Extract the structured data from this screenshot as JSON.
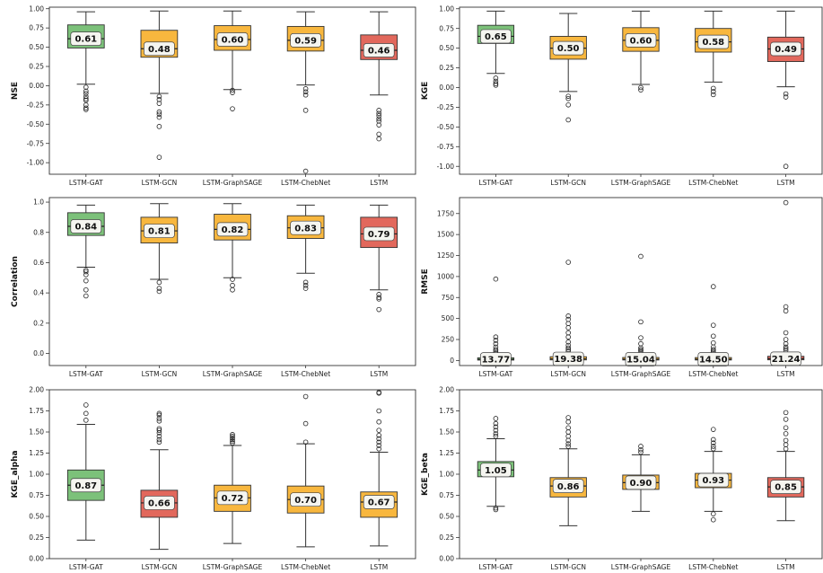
{
  "figure": {
    "colors": {
      "best": "#7cc17a",
      "mid": "#f8b73e",
      "worst": "#e2685c",
      "label_bg": "#f5f5f0",
      "frame": "#333333"
    }
  },
  "chart_data": [
    {
      "type": "box",
      "ylabel": "NSE",
      "categories": [
        "LSTM-GAT",
        "LSTM-GCN",
        "LSTM-GraphSAGE",
        "LSTM-ChebNet",
        "LSTM"
      ],
      "ylim": [
        -1.15,
        1.02
      ],
      "yticks": [
        -1.0,
        -0.75,
        -0.5,
        -0.25,
        0.0,
        0.25,
        0.5,
        0.75,
        1.0
      ],
      "ytick_labels": [
        "-1.00",
        "-0.75",
        "-0.50",
        "-0.25",
        "0.00",
        "0.25",
        "0.50",
        "0.75",
        "1.00"
      ],
      "boxes": [
        {
          "q1": 0.49,
          "median": 0.61,
          "q3": 0.79,
          "wlo": 0.02,
          "whi": 0.96,
          "label": "0.61",
          "color": "best",
          "outliers": [
            -0.02,
            -0.07,
            -0.1,
            -0.14,
            -0.17,
            -0.19,
            -0.25,
            -0.29,
            -0.31
          ]
        },
        {
          "q1": 0.37,
          "median": 0.48,
          "q3": 0.72,
          "wlo": -0.1,
          "whi": 0.97,
          "label": "0.48",
          "color": "mid",
          "outliers": [
            -0.14,
            -0.18,
            -0.23,
            -0.34,
            -0.37,
            -0.41,
            -0.53,
            -0.93
          ]
        },
        {
          "q1": 0.46,
          "median": 0.6,
          "q3": 0.78,
          "wlo": -0.05,
          "whi": 0.97,
          "label": "0.60",
          "color": "mid",
          "outliers": [
            -0.06,
            -0.09,
            -0.3
          ]
        },
        {
          "q1": 0.45,
          "median": 0.59,
          "q3": 0.77,
          "wlo": 0.01,
          "whi": 0.96,
          "label": "0.59",
          "color": "mid",
          "outliers": [
            -0.04,
            -0.08,
            -0.12,
            -0.32,
            -1.11
          ]
        },
        {
          "q1": 0.34,
          "median": 0.46,
          "q3": 0.66,
          "wlo": -0.12,
          "whi": 0.96,
          "label": "0.46",
          "color": "worst",
          "outliers": [
            -0.32,
            -0.36,
            -0.39,
            -0.43,
            -0.46,
            -0.51,
            -0.63,
            -0.69
          ]
        }
      ]
    },
    {
      "type": "box",
      "ylabel": "KGE",
      "categories": [
        "LSTM-GAT",
        "LSTM-GCN",
        "LSTM-GraphSAGE",
        "LSTM-ChebNet",
        "LSTM"
      ],
      "ylim": [
        -1.1,
        1.02
      ],
      "yticks": [
        -1.0,
        -0.75,
        -0.5,
        -0.25,
        0.0,
        0.25,
        0.5,
        0.75,
        1.0
      ],
      "ytick_labels": [
        "-1.00",
        "-0.75",
        "-0.50",
        "-0.25",
        "0.00",
        "0.25",
        "0.50",
        "0.75",
        "1.00"
      ],
      "boxes": [
        {
          "q1": 0.56,
          "median": 0.65,
          "q3": 0.79,
          "wlo": 0.18,
          "whi": 0.97,
          "label": "0.65",
          "color": "best",
          "outliers": [
            0.12,
            0.08,
            0.05,
            0.03
          ]
        },
        {
          "q1": 0.36,
          "median": 0.5,
          "q3": 0.65,
          "wlo": -0.05,
          "whi": 0.94,
          "label": "0.50",
          "color": "mid",
          "outliers": [
            -0.11,
            -0.14,
            -0.22,
            -0.41
          ]
        },
        {
          "q1": 0.46,
          "median": 0.6,
          "q3": 0.76,
          "wlo": 0.04,
          "whi": 0.97,
          "label": "0.60",
          "color": "mid",
          "outliers": [
            0.0,
            -0.03
          ]
        },
        {
          "q1": 0.45,
          "median": 0.58,
          "q3": 0.75,
          "wlo": 0.07,
          "whi": 0.97,
          "label": "0.58",
          "color": "mid",
          "outliers": [
            -0.01,
            -0.05,
            -0.09
          ]
        },
        {
          "q1": 0.33,
          "median": 0.49,
          "q3": 0.64,
          "wlo": 0.01,
          "whi": 0.97,
          "label": "0.49",
          "color": "worst",
          "outliers": [
            -0.08,
            -0.12,
            -1.0
          ]
        }
      ]
    },
    {
      "type": "box",
      "ylabel": "Correlation",
      "categories": [
        "LSTM-GAT",
        "LSTM-GCN",
        "LSTM-GraphSAGE",
        "LSTM-ChebNet",
        "LSTM"
      ],
      "ylim": [
        -0.08,
        1.03
      ],
      "yticks": [
        0.0,
        0.2,
        0.4,
        0.6,
        0.8,
        1.0
      ],
      "ytick_labels": [
        "0.0",
        "0.2",
        "0.4",
        "0.6",
        "0.8",
        "1.0"
      ],
      "boxes": [
        {
          "q1": 0.78,
          "median": 0.84,
          "q3": 0.93,
          "wlo": 0.57,
          "whi": 0.98,
          "label": "0.84",
          "color": "best",
          "outliers": [
            0.55,
            0.54,
            0.52,
            0.48,
            0.42,
            0.38
          ]
        },
        {
          "q1": 0.73,
          "median": 0.81,
          "q3": 0.9,
          "wlo": 0.49,
          "whi": 0.99,
          "label": "0.81",
          "color": "mid",
          "outliers": [
            0.47,
            0.43,
            0.41
          ]
        },
        {
          "q1": 0.75,
          "median": 0.82,
          "q3": 0.92,
          "wlo": 0.5,
          "whi": 0.99,
          "label": "0.82",
          "color": "mid",
          "outliers": [
            0.49,
            0.45,
            0.42
          ]
        },
        {
          "q1": 0.76,
          "median": 0.83,
          "q3": 0.91,
          "wlo": 0.53,
          "whi": 0.98,
          "label": "0.83",
          "color": "mid",
          "outliers": [
            0.47,
            0.45,
            0.43
          ]
        },
        {
          "q1": 0.7,
          "median": 0.79,
          "q3": 0.9,
          "wlo": 0.42,
          "whi": 0.98,
          "label": "0.79",
          "color": "worst",
          "outliers": [
            0.39,
            0.37,
            0.36,
            0.29
          ]
        }
      ]
    },
    {
      "type": "box",
      "ylabel": "RMSE",
      "categories": [
        "LSTM-GAT",
        "LSTM-GCN",
        "LSTM-GraphSAGE",
        "LSTM-ChebNet",
        "LSTM"
      ],
      "ylim": [
        -60,
        1940
      ],
      "yticks": [
        0,
        250,
        500,
        750,
        1000,
        1250,
        1500,
        1750
      ],
      "ytick_labels": [
        "0",
        "250",
        "500",
        "750",
        "1000",
        "1250",
        "1500",
        "1750"
      ],
      "boxes": [
        {
          "q1": 5,
          "median": 13.77,
          "q3": 32,
          "wlo": 0,
          "whi": 70,
          "label": "13.77",
          "color": "best",
          "outliers": [
            90,
            110,
            130,
            160,
            200,
            240,
            280,
            970
          ]
        },
        {
          "q1": 7,
          "median": 19.38,
          "q3": 45,
          "wlo": 0,
          "whi": 90,
          "label": "19.38",
          "color": "mid",
          "outliers": [
            110,
            130,
            150,
            180,
            220,
            280,
            330,
            390,
            440,
            490,
            530,
            1170
          ]
        },
        {
          "q1": 6,
          "median": 15.04,
          "q3": 36,
          "wlo": 0,
          "whi": 78,
          "label": "15.04",
          "color": "mid",
          "outliers": [
            95,
            115,
            130,
            150,
            200,
            270,
            460,
            1240
          ]
        },
        {
          "q1": 6,
          "median": 14.5,
          "q3": 35,
          "wlo": 0,
          "whi": 75,
          "label": "14.50",
          "color": "mid",
          "outliers": [
            95,
            110,
            130,
            160,
            210,
            290,
            420,
            880
          ]
        },
        {
          "q1": 8,
          "median": 21.24,
          "q3": 50,
          "wlo": 0,
          "whi": 100,
          "label": "21.24",
          "color": "worst",
          "outliers": [
            120,
            140,
            160,
            200,
            250,
            330,
            590,
            640,
            1880
          ]
        }
      ]
    },
    {
      "type": "box",
      "ylabel": "KGE_alpha",
      "categories": [
        "LSTM-GAT",
        "LSTM-GCN",
        "LSTM-GraphSAGE",
        "LSTM-ChebNet",
        "LSTM"
      ],
      "ylim": [
        0.0,
        2.0
      ],
      "yticks": [
        0.0,
        0.25,
        0.5,
        0.75,
        1.0,
        1.25,
        1.5,
        1.75,
        2.0
      ],
      "ytick_labels": [
        "0.00",
        "0.25",
        "0.50",
        "0.75",
        "1.00",
        "1.25",
        "1.50",
        "1.75",
        "2.00"
      ],
      "boxes": [
        {
          "q1": 0.69,
          "median": 0.87,
          "q3": 1.05,
          "wlo": 0.22,
          "whi": 1.59,
          "label": "0.87",
          "color": "best",
          "outliers": [
            1.64,
            1.72,
            1.82
          ]
        },
        {
          "q1": 0.49,
          "median": 0.66,
          "q3": 0.81,
          "wlo": 0.11,
          "whi": 1.29,
          "label": "0.66",
          "color": "worst",
          "outliers": [
            1.38,
            1.41,
            1.45,
            1.49,
            1.52,
            1.54,
            1.63,
            1.66,
            1.7,
            1.72
          ]
        },
        {
          "q1": 0.56,
          "median": 0.72,
          "q3": 0.87,
          "wlo": 0.18,
          "whi": 1.34,
          "label": "0.72",
          "color": "mid",
          "outliers": [
            1.37,
            1.39,
            1.41,
            1.43,
            1.45,
            1.47
          ]
        },
        {
          "q1": 0.54,
          "median": 0.7,
          "q3": 0.86,
          "wlo": 0.14,
          "whi": 1.36,
          "label": "0.70",
          "color": "mid",
          "outliers": [
            1.38,
            1.6,
            1.92
          ]
        },
        {
          "q1": 0.49,
          "median": 0.67,
          "q3": 0.79,
          "wlo": 0.15,
          "whi": 1.26,
          "label": "0.67",
          "color": "mid",
          "outliers": [
            1.3,
            1.34,
            1.38,
            1.42,
            1.46,
            1.52,
            1.62,
            1.75,
            1.96,
            1.97
          ]
        }
      ]
    },
    {
      "type": "box",
      "ylabel": "KGE_beta",
      "categories": [
        "LSTM-GAT",
        "LSTM-GCN",
        "LSTM-GraphSAGE",
        "LSTM-ChebNet",
        "LSTM"
      ],
      "ylim": [
        0.0,
        2.0
      ],
      "yticks": [
        0.0,
        0.25,
        0.5,
        0.75,
        1.0,
        1.25,
        1.5,
        1.75,
        2.0
      ],
      "ytick_labels": [
        "0.00",
        "0.25",
        "0.50",
        "0.75",
        "1.00",
        "1.25",
        "1.50",
        "1.75",
        "2.00"
      ],
      "boxes": [
        {
          "q1": 0.97,
          "median": 1.05,
          "q3": 1.15,
          "wlo": 0.62,
          "whi": 1.42,
          "label": "1.05",
          "color": "best",
          "outliers": [
            0.6,
            0.58,
            1.45,
            1.48,
            1.52,
            1.56,
            1.6,
            1.66
          ]
        },
        {
          "q1": 0.73,
          "median": 0.86,
          "q3": 0.96,
          "wlo": 0.39,
          "whi": 1.3,
          "label": "0.86",
          "color": "mid",
          "outliers": [
            1.33,
            1.36,
            1.4,
            1.45,
            1.5,
            1.55,
            1.62,
            1.67
          ]
        },
        {
          "q1": 0.82,
          "median": 0.9,
          "q3": 0.99,
          "wlo": 0.56,
          "whi": 1.23,
          "label": "0.90",
          "color": "mid",
          "outliers": [
            1.26,
            1.29,
            1.33
          ]
        },
        {
          "q1": 0.84,
          "median": 0.93,
          "q3": 1.01,
          "wlo": 0.56,
          "whi": 1.27,
          "label": "0.93",
          "color": "mid",
          "outliers": [
            0.53,
            0.46,
            1.3,
            1.33,
            1.37,
            1.41,
            1.53
          ]
        },
        {
          "q1": 0.73,
          "median": 0.85,
          "q3": 0.96,
          "wlo": 0.45,
          "whi": 1.27,
          "label": "0.85",
          "color": "worst",
          "outliers": [
            1.3,
            1.35,
            1.4,
            1.48,
            1.55,
            1.65,
            1.73
          ]
        }
      ]
    }
  ]
}
